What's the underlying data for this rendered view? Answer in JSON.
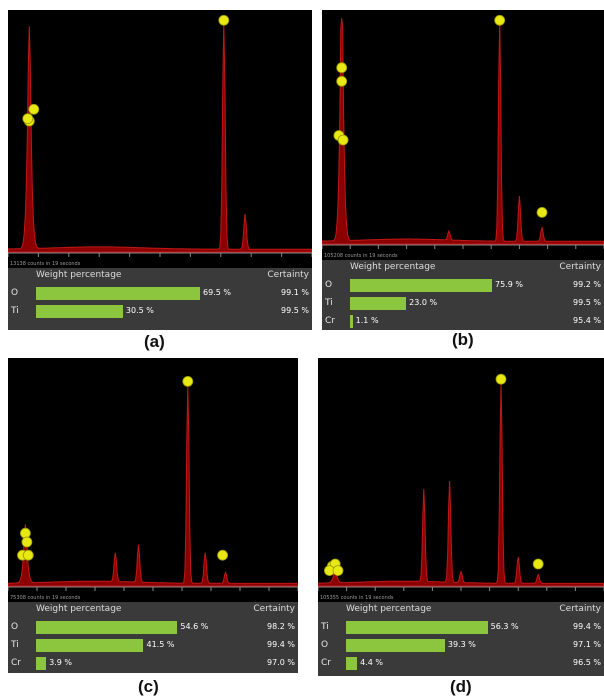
{
  "colors": {
    "spectrum_fill": "#8b0000",
    "spectrum_stroke": "#c01818",
    "bar": "#8cc63f",
    "table_bg": "#3a3a3a",
    "plot_bg": "#000000",
    "marker": "#e8e814"
  },
  "chart_data": [
    {
      "type": "area",
      "caption": "(a)",
      "count_note": "13138 counts in 19 seconds",
      "table": {
        "header_weight": "Weight percentage",
        "header_certainty": "Certainty",
        "rows": [
          {
            "element": "O",
            "weight": 69.5,
            "weight_label": "69.5 %",
            "certainty": "99.1 %"
          },
          {
            "element": "Ti",
            "weight": 30.5,
            "weight_label": "30.5 %",
            "certainty": "99.5 %"
          }
        ]
      },
      "peaks": [
        {
          "x": 0.07,
          "h": 0.5
        },
        {
          "x": 0.71,
          "h": 0.97
        },
        {
          "x": 0.78,
          "h": 0.15
        }
      ],
      "markers": [
        {
          "x": 0.07,
          "h": 0.56
        },
        {
          "x": 0.085,
          "h": 0.61
        },
        {
          "x": 0.065,
          "h": 0.57
        },
        {
          "x": 0.71,
          "h": 0.99
        }
      ]
    },
    {
      "type": "area",
      "caption": "(b)",
      "count_note": "105208 counts in 19 seconds",
      "table": {
        "header_weight": "Weight percentage",
        "header_certainty": "Certainty",
        "rows": [
          {
            "element": "O",
            "weight": 75.9,
            "weight_label": "75.9 %",
            "certainty": "99.2 %"
          },
          {
            "element": "Ti",
            "weight": 23.0,
            "weight_label": "23.0 %",
            "certainty": "99.5 %"
          },
          {
            "element": "Cr",
            "weight": 1.1,
            "weight_label": "1.1 %",
            "certainty": "95.4 %"
          }
        ]
      },
      "peaks": [
        {
          "x": 0.07,
          "h": 0.6
        },
        {
          "x": 0.63,
          "h": 0.97
        },
        {
          "x": 0.7,
          "h": 0.2
        },
        {
          "x": 0.78,
          "h": 0.06
        },
        {
          "x": 0.45,
          "h": 0.04
        }
      ],
      "markers": [
        {
          "x": 0.07,
          "h": 0.78
        },
        {
          "x": 0.07,
          "h": 0.72
        },
        {
          "x": 0.06,
          "h": 0.48
        },
        {
          "x": 0.075,
          "h": 0.46
        },
        {
          "x": 0.63,
          "h": 0.99
        },
        {
          "x": 0.78,
          "h": 0.14
        }
      ]
    },
    {
      "type": "area",
      "caption": "(c)",
      "count_note": "75308 counts in 19 seconds",
      "table": {
        "header_weight": "Weight percentage",
        "header_certainty": "Certainty",
        "rows": [
          {
            "element": "O",
            "weight": 54.6,
            "weight_label": "54.6 %",
            "certainty": "98.2 %"
          },
          {
            "element": "Ti",
            "weight": 41.5,
            "weight_label": "41.5 %",
            "certainty": "99.4 %"
          },
          {
            "element": "Cr",
            "weight": 3.9,
            "weight_label": "3.9 %",
            "certainty": "97.0 %"
          }
        ]
      },
      "peaks": [
        {
          "x": 0.06,
          "h": 0.14
        },
        {
          "x": 0.37,
          "h": 0.13
        },
        {
          "x": 0.45,
          "h": 0.17
        },
        {
          "x": 0.62,
          "h": 0.9
        },
        {
          "x": 0.68,
          "h": 0.14
        },
        {
          "x": 0.75,
          "h": 0.05
        }
      ],
      "markers": [
        {
          "x": 0.06,
          "h": 0.24
        },
        {
          "x": 0.065,
          "h": 0.2
        },
        {
          "x": 0.05,
          "h": 0.14
        },
        {
          "x": 0.07,
          "h": 0.14
        },
        {
          "x": 0.62,
          "h": 0.93
        },
        {
          "x": 0.74,
          "h": 0.14
        }
      ]
    },
    {
      "type": "area",
      "caption": "(d)",
      "count_note": "105355 counts in 19 seconds",
      "table": {
        "header_weight": "Weight percentage",
        "header_certainty": "Certainty",
        "rows": [
          {
            "element": "Ti",
            "weight": 56.3,
            "weight_label": "56.3 %",
            "certainty": "99.4 %"
          },
          {
            "element": "O",
            "weight": 39.3,
            "weight_label": "39.3 %",
            "certainty": "97.1 %"
          },
          {
            "element": "Cr",
            "weight": 4.4,
            "weight_label": "4.4 %",
            "certainty": "96.5 %"
          }
        ]
      },
      "peaks": [
        {
          "x": 0.06,
          "h": 0.03
        },
        {
          "x": 0.37,
          "h": 0.42
        },
        {
          "x": 0.46,
          "h": 0.46
        },
        {
          "x": 0.5,
          "h": 0.05
        },
        {
          "x": 0.64,
          "h": 0.91
        },
        {
          "x": 0.7,
          "h": 0.12
        },
        {
          "x": 0.77,
          "h": 0.04
        }
      ],
      "markers": [
        {
          "x": 0.05,
          "h": 0.09
        },
        {
          "x": 0.06,
          "h": 0.1
        },
        {
          "x": 0.04,
          "h": 0.07
        },
        {
          "x": 0.07,
          "h": 0.07
        },
        {
          "x": 0.64,
          "h": 0.94
        },
        {
          "x": 0.77,
          "h": 0.1
        }
      ]
    }
  ]
}
